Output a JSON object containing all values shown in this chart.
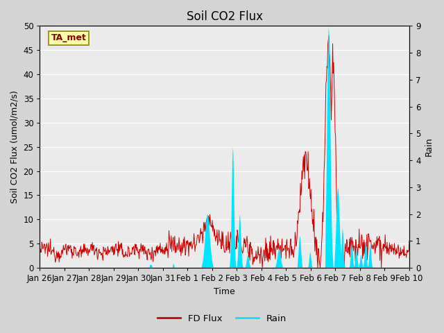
{
  "title": "Soil CO2 Flux",
  "ylabel_left": "Soil CO2 Flux (umol/m2/s)",
  "ylabel_right": "Rain",
  "xlabel": "Time",
  "ylim_left": [
    0,
    50
  ],
  "ylim_right": [
    0,
    9.0
  ],
  "yticks_left": [
    0,
    5,
    10,
    15,
    20,
    25,
    30,
    35,
    40,
    45,
    50
  ],
  "yticks_right": [
    0.0,
    1.0,
    2.0,
    3.0,
    4.0,
    5.0,
    6.0,
    7.0,
    8.0,
    9.0
  ],
  "xtick_labels": [
    "Jan 26",
    "Jan 27",
    "Jan 28",
    "Jan 29",
    "Jan 30",
    "Jan 31",
    "Feb 1",
    "Feb 2",
    "Feb 3",
    "Feb 4",
    "Feb 5",
    "Feb 6",
    "Feb 7",
    "Feb 8",
    "Feb 9",
    "Feb 10"
  ],
  "flux_color": "#cc0000",
  "rain_color": "#00e5ff",
  "figure_bg": "#d4d4d4",
  "plot_bg": "#ebebeb",
  "grid_color": "#ffffff",
  "annotation_text": "TA_met",
  "annotation_color": "#880000",
  "annotation_bg": "#ffffaa",
  "annotation_border": "#888800",
  "legend_entries": [
    "FD Flux",
    "Rain"
  ],
  "title_fontsize": 12,
  "label_fontsize": 9,
  "tick_fontsize": 8.5,
  "n_days": 16,
  "pts_per_day": 48
}
